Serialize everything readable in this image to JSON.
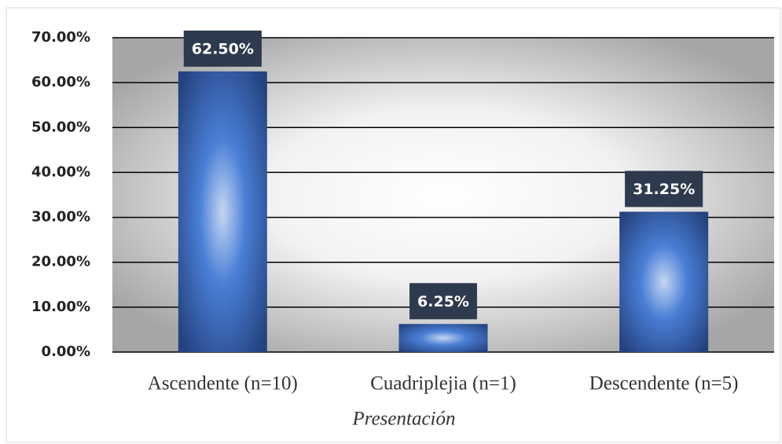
{
  "chart_data": {
    "type": "bar",
    "categories": [
      "Ascendente (n=10)",
      "Cuadriplejia (n=1)",
      "Descendente (n=5)"
    ],
    "values": [
      62.5,
      6.25,
      31.25
    ],
    "value_labels": [
      "62.50%",
      "6.25%",
      "31.25%"
    ],
    "color": "#3a6bc4",
    "x_label": "Presentación",
    "ylim": [
      0,
      70
    ],
    "yticks": [
      {
        "value": 0,
        "label": "0.00%"
      },
      {
        "value": 10,
        "label": "10.00%"
      },
      {
        "value": 20,
        "label": "20.00%"
      },
      {
        "value": 30,
        "label": "30.00%"
      },
      {
        "value": 40,
        "label": "40.00%"
      },
      {
        "value": 50,
        "label": "50.00%"
      },
      {
        "value": 60,
        "label": "60.00%"
      },
      {
        "value": 70,
        "label": "70.00%"
      }
    ],
    "grid": true
  }
}
